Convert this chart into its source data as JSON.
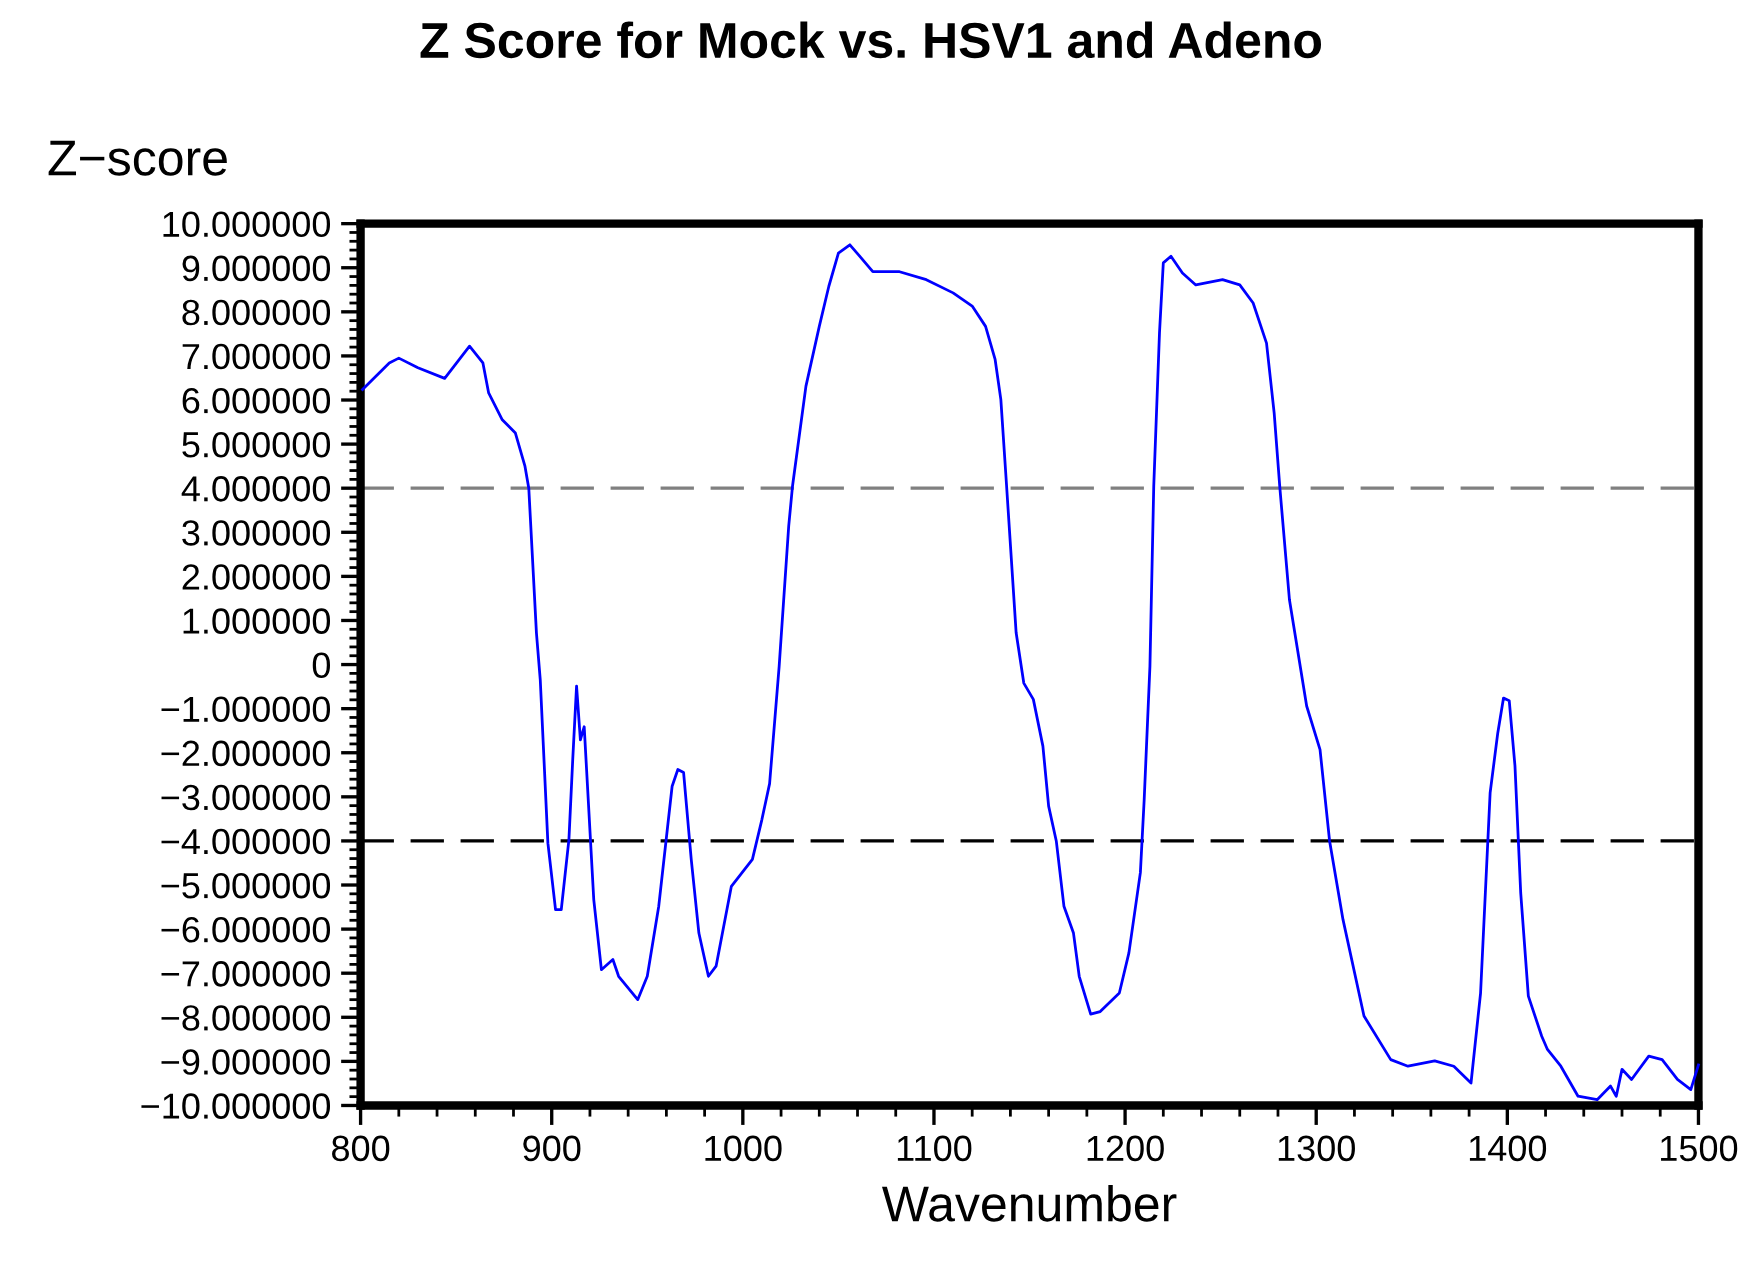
{
  "chart_data": {
    "type": "line",
    "title": "Z Score for Mock vs. HSV1 and Adeno",
    "xlabel": "Wavenumber",
    "ylabel": "Z−score",
    "xlim": [
      800,
      1500
    ],
    "xticks": [
      800,
      900,
      1000,
      1100,
      1200,
      1300,
      1400,
      1500
    ],
    "ylim": [
      -10,
      10
    ],
    "yticks": [
      {
        "value": 10,
        "label": "10.000000"
      },
      {
        "value": 9,
        "label": "9.000000"
      },
      {
        "value": 8,
        "label": "8.000000"
      },
      {
        "value": 7,
        "label": "7.000000"
      },
      {
        "value": 6,
        "label": "6.000000"
      },
      {
        "value": 5,
        "label": "5.000000"
      },
      {
        "value": 4,
        "label": "4.000000"
      },
      {
        "value": 3,
        "label": "3.000000"
      },
      {
        "value": 2,
        "label": "2.000000"
      },
      {
        "value": 1,
        "label": "1.000000"
      },
      0,
      {
        "value": -1,
        "label": "−1.000000"
      },
      {
        "value": -2,
        "label": "−2.000000"
      },
      {
        "value": -3,
        "label": "−3.000000"
      },
      {
        "value": -4,
        "label": "−4.000000"
      },
      {
        "value": -5,
        "label": "−5.000000"
      },
      {
        "value": -6,
        "label": "−6.000000"
      },
      {
        "value": -7,
        "label": "−7.000000"
      },
      {
        "value": -8,
        "label": "−8.000000"
      },
      {
        "value": -9,
        "label": "−9.000000"
      },
      {
        "value": -10,
        "label": "−10.000000"
      }
    ],
    "grid": false,
    "legend": false,
    "marker": "none",
    "line_style": "solid",
    "ref_lines": [
      {
        "axis": "y",
        "value": 4,
        "color": "#808080",
        "line_style": "dashed"
      },
      {
        "axis": "y",
        "value": -4,
        "color": "#000000",
        "line_style": "dashed"
      }
    ],
    "series": [
      {
        "color": "#0000ff",
        "x": [
          801,
          815,
          820,
          830,
          844,
          857,
          864,
          867,
          874,
          881,
          886,
          888,
          892,
          894,
          898,
          902,
          905,
          909,
          911,
          913,
          915,
          917,
          922,
          926,
          932,
          935,
          945,
          950,
          956,
          963,
          966,
          969,
          973,
          977,
          982,
          986,
          994,
          1005,
          1010,
          1014,
          1019,
          1024,
          1026,
          1033,
          1040,
          1045,
          1050,
          1056,
          1061,
          1068,
          1082,
          1096,
          1110,
          1120,
          1127,
          1132,
          1135,
          1138,
          1143,
          1147,
          1152,
          1157,
          1160,
          1164,
          1168,
          1173,
          1176,
          1182,
          1187,
          1197,
          1202,
          1208,
          1210,
          1213,
          1215,
          1218,
          1220,
          1224,
          1230,
          1237,
          1251,
          1260,
          1267,
          1274,
          1278,
          1281,
          1286,
          1295,
          1302,
          1307,
          1314,
          1325,
          1339,
          1348,
          1362,
          1372,
          1381,
          1386,
          1391,
          1395,
          1398,
          1401,
          1404,
          1407,
          1411,
          1418,
          1421,
          1428,
          1437,
          1447,
          1454,
          1457,
          1460,
          1465,
          1474,
          1481,
          1489,
          1496,
          1500
        ],
        "values": [
          6.24,
          6.84,
          6.95,
          6.73,
          6.49,
          7.22,
          6.84,
          6.16,
          5.56,
          5.25,
          4.5,
          4.0,
          0.72,
          -0.34,
          -4.05,
          -5.56,
          -5.56,
          -3.97,
          -2.15,
          -0.49,
          -1.71,
          -1.41,
          -5.33,
          -6.92,
          -6.69,
          -7.07,
          -7.6,
          -7.07,
          -5.48,
          -2.76,
          -2.38,
          -2.45,
          -4.42,
          -6.09,
          -7.07,
          -6.84,
          -5.03,
          -4.42,
          -3.51,
          -2.7,
          -0.04,
          3.14,
          4.05,
          6.31,
          7.67,
          8.58,
          9.33,
          9.52,
          9.27,
          8.91,
          8.91,
          8.73,
          8.43,
          8.13,
          7.67,
          6.92,
          6.01,
          4.05,
          0.72,
          -0.42,
          -0.79,
          -1.85,
          -3.21,
          -4.0,
          -5.48,
          -6.09,
          -7.07,
          -7.93,
          -7.87,
          -7.45,
          -6.54,
          -4.72,
          -3.06,
          -0.04,
          4.05,
          7.52,
          9.11,
          9.26,
          8.88,
          8.61,
          8.73,
          8.61,
          8.2,
          7.29,
          5.71,
          4.0,
          1.47,
          -0.94,
          -1.93,
          -4.0,
          -5.78,
          -7.97,
          -8.96,
          -9.11,
          -8.99,
          -9.11,
          -9.49,
          -7.45,
          -2.91,
          -1.55,
          -0.76,
          -0.82,
          -2.3,
          -5.18,
          -7.52,
          -8.43,
          -8.73,
          -9.11,
          -9.79,
          -9.87,
          -9.56,
          -9.79,
          -9.18,
          -9.41,
          -8.88,
          -8.96,
          -9.41,
          -9.64,
          -9.08
        ]
      }
    ]
  }
}
